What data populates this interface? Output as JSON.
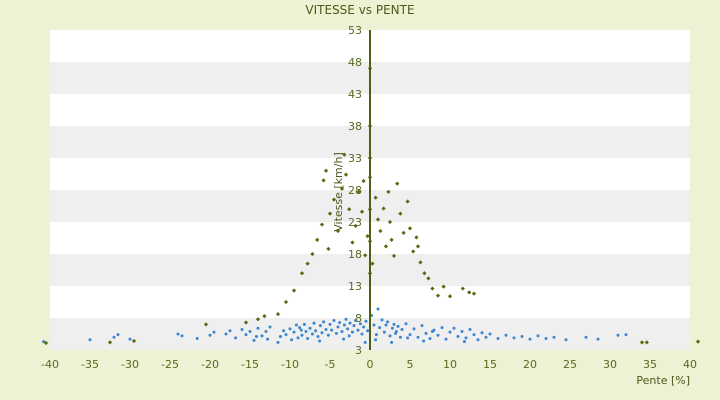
{
  "chart_data": {
    "type": "scatter",
    "title": "VITESSE vs PENTE",
    "xlabel": "Pente [%]",
    "ylabel": "Vitesse [km/h]",
    "xlim": [
      -40,
      40
    ],
    "ylim": [
      3,
      53
    ],
    "xticks": [
      "-40",
      "-35",
      "-30",
      "-25",
      "-20",
      "-15",
      "-10",
      "-5",
      "0",
      "5",
      "10",
      "15",
      "20",
      "25",
      "30",
      "35",
      "40"
    ],
    "yticks": [
      "3",
      "8",
      "13",
      "18",
      "23",
      "28",
      "33",
      "38",
      "43",
      "48",
      "53"
    ],
    "legend": "none",
    "grid": "horizontal alternating bands",
    "colors": {
      "background": "#eef1d3",
      "plot_band_light": "#ffffff",
      "plot_band_dark": "#efefef",
      "series_blue": "#3a86d1",
      "series_olive": "#5a6a12",
      "text": "#556b1f"
    },
    "series": [
      {
        "color": "#3a86d1",
        "marker": "dot",
        "points": [
          [
            -40.8,
            4.3
          ],
          [
            -35,
            4.6
          ],
          [
            -32,
            5.0
          ],
          [
            -31.5,
            5.4
          ],
          [
            -30,
            4.7
          ],
          [
            -24,
            5.5
          ],
          [
            -23.5,
            5.2
          ],
          [
            -21.6,
            4.8
          ],
          [
            -20,
            5.3
          ],
          [
            -19.5,
            5.8
          ],
          [
            -18,
            5.5
          ],
          [
            -17.5,
            6.0
          ],
          [
            -16.8,
            4.9
          ],
          [
            -16,
            6.2
          ],
          [
            -15.5,
            5.4
          ],
          [
            -15,
            5.9
          ],
          [
            -14.5,
            4.5
          ],
          [
            -14,
            6.4
          ],
          [
            -13.5,
            5.2
          ],
          [
            -13,
            5.9
          ],
          [
            -12.8,
            4.7
          ],
          [
            -12.5,
            6.6
          ],
          [
            -11.2,
            5.1
          ],
          [
            -10.8,
            6.0
          ],
          [
            -10.5,
            5.4
          ],
          [
            -10,
            6.3
          ],
          [
            -9.8,
            4.6
          ],
          [
            -9.5,
            5.8
          ],
          [
            -9.2,
            6.9
          ],
          [
            -9,
            4.9
          ],
          [
            -8.8,
            6.5
          ],
          [
            -8.5,
            5.3
          ],
          [
            -8.2,
            7.0
          ],
          [
            -8,
            5.9
          ],
          [
            -7.8,
            4.8
          ],
          [
            -7.5,
            6.4
          ],
          [
            -7.2,
            5.5
          ],
          [
            -7,
            7.2
          ],
          [
            -6.8,
            6.0
          ],
          [
            -6.5,
            5.1
          ],
          [
            -6.2,
            6.8
          ],
          [
            -6,
            5.7
          ],
          [
            -5.8,
            7.4
          ],
          [
            -5.5,
            6.2
          ],
          [
            -5.2,
            5.3
          ],
          [
            -5,
            7.0
          ],
          [
            -4.8,
            6.1
          ],
          [
            -4.5,
            7.6
          ],
          [
            -4.2,
            5.6
          ],
          [
            -4,
            6.6
          ],
          [
            -3.8,
            7.3
          ],
          [
            -3.5,
            5.9
          ],
          [
            -3.2,
            6.9
          ],
          [
            -3,
            7.8
          ],
          [
            -2.8,
            6.3
          ],
          [
            -2.5,
            7.2
          ],
          [
            -2.2,
            5.8
          ],
          [
            -2,
            6.8
          ],
          [
            -1.8,
            7.6
          ],
          [
            -1.5,
            6.1
          ],
          [
            -1.2,
            7.1
          ],
          [
            -1,
            5.5
          ],
          [
            -0.8,
            6.6
          ],
          [
            -0.5,
            7.5
          ],
          [
            -0.3,
            6.0
          ],
          [
            0.2,
            8.4
          ],
          [
            0.5,
            6.9
          ],
          [
            0.8,
            5.4
          ],
          [
            1,
            9.4
          ],
          [
            1.2,
            6.5
          ],
          [
            1.5,
            7.7
          ],
          [
            1.8,
            5.8
          ],
          [
            2,
            6.9
          ],
          [
            2.2,
            7.4
          ],
          [
            2.5,
            5.2
          ],
          [
            2.8,
            6.4
          ],
          [
            3,
            7.0
          ],
          [
            3.2,
            5.6
          ],
          [
            3.5,
            6.7
          ],
          [
            3.8,
            5.0
          ],
          [
            4,
            6.2
          ],
          [
            4.5,
            7.1
          ],
          [
            5,
            5.4
          ],
          [
            5.5,
            6.3
          ],
          [
            6,
            5.0
          ],
          [
            6.5,
            6.8
          ],
          [
            7,
            5.6
          ],
          [
            7.5,
            4.8
          ],
          [
            8,
            6.1
          ],
          [
            8.5,
            5.3
          ],
          [
            9,
            6.5
          ],
          [
            9.5,
            4.7
          ],
          [
            10,
            5.8
          ],
          [
            10.5,
            6.4
          ],
          [
            11,
            5.1
          ],
          [
            11.5,
            5.9
          ],
          [
            12,
            4.9
          ],
          [
            12.5,
            6.2
          ],
          [
            13,
            5.4
          ],
          [
            13.5,
            4.6
          ],
          [
            14,
            5.7
          ],
          [
            14.5,
            5.0
          ],
          [
            15,
            5.5
          ],
          [
            16,
            4.8
          ],
          [
            17,
            5.3
          ],
          [
            18,
            4.9
          ],
          [
            19,
            5.1
          ],
          [
            20,
            4.7
          ],
          [
            21,
            5.2
          ],
          [
            22,
            4.8
          ],
          [
            23,
            5.0
          ],
          [
            24.5,
            4.6
          ],
          [
            27,
            5.0
          ],
          [
            28.5,
            4.7
          ],
          [
            31,
            5.3
          ],
          [
            32,
            5.4
          ],
          [
            -11.5,
            4.2
          ],
          [
            -6.3,
            4.4
          ],
          [
            -3.3,
            4.7
          ],
          [
            -0.6,
            4.2
          ],
          [
            0.7,
            4.6
          ],
          [
            2.7,
            4.2
          ],
          [
            4.7,
            4.9
          ],
          [
            6.7,
            4.4
          ],
          [
            7.8,
            5.9
          ],
          [
            11.8,
            4.3
          ],
          [
            -14.2,
            5.1
          ],
          [
            -8.6,
            6.1
          ],
          [
            -2.6,
            5.2
          ],
          [
            3.3,
            5.9
          ]
        ]
      },
      {
        "color": "#5a6a12",
        "marker": "small-diamond",
        "points": [
          [
            -40.5,
            4.1
          ],
          [
            -32.5,
            4.2
          ],
          [
            -29.5,
            4.4
          ],
          [
            -20.5,
            7.0
          ],
          [
            -15.5,
            7.3
          ],
          [
            -14,
            7.8
          ],
          [
            -13.2,
            8.3
          ],
          [
            -11.5,
            8.6
          ],
          [
            -10.5,
            10.5
          ],
          [
            -9.5,
            12.3
          ],
          [
            -8.5,
            15.0
          ],
          [
            -7.8,
            16.5
          ],
          [
            -7.2,
            18.0
          ],
          [
            -6.6,
            20.2
          ],
          [
            -6,
            22.6
          ],
          [
            -5.8,
            29.5
          ],
          [
            -5.5,
            31.0
          ],
          [
            -5,
            24.3
          ],
          [
            -4.5,
            26.5
          ],
          [
            -4,
            21.6
          ],
          [
            -3.5,
            28.2
          ],
          [
            -3.2,
            33.5
          ],
          [
            -3,
            30.4
          ],
          [
            -2.6,
            25.0
          ],
          [
            -2.2,
            19.8
          ],
          [
            -1.8,
            22.4
          ],
          [
            -1.4,
            27.7
          ],
          [
            -1,
            24.6
          ],
          [
            -0.6,
            17.8
          ],
          [
            -0.3,
            20.8
          ],
          [
            0,
            15.0
          ],
          [
            0,
            20.0
          ],
          [
            0,
            25.0
          ],
          [
            0,
            30.0
          ],
          [
            0,
            33.0
          ],
          [
            0,
            38.0
          ],
          [
            0,
            47.0
          ],
          [
            0.3,
            16.5
          ],
          [
            0.7,
            26.8
          ],
          [
            1,
            23.4
          ],
          [
            1.3,
            21.6
          ],
          [
            1.7,
            25.1
          ],
          [
            2,
            19.2
          ],
          [
            2.3,
            27.7
          ],
          [
            2.7,
            20.2
          ],
          [
            3,
            17.7
          ],
          [
            3.4,
            29.0
          ],
          [
            3.8,
            24.3
          ],
          [
            4.2,
            21.3
          ],
          [
            4.7,
            26.2
          ],
          [
            5,
            22.0
          ],
          [
            5.4,
            18.4
          ],
          [
            5.8,
            20.6
          ],
          [
            6.3,
            16.7
          ],
          [
            6.8,
            15.0
          ],
          [
            7.3,
            14.2
          ],
          [
            7.8,
            12.6
          ],
          [
            8.5,
            11.5
          ],
          [
            9.2,
            12.9
          ],
          [
            10,
            11.4
          ],
          [
            11.6,
            12.6
          ],
          [
            12.4,
            12.0
          ],
          [
            13,
            11.8
          ],
          [
            34,
            4.2
          ],
          [
            34.6,
            4.2
          ],
          [
            41,
            4.3
          ],
          [
            -0.8,
            29.4
          ],
          [
            2.5,
            23.0
          ],
          [
            -5.2,
            18.8
          ],
          [
            6.0,
            19.2
          ]
        ]
      }
    ]
  }
}
